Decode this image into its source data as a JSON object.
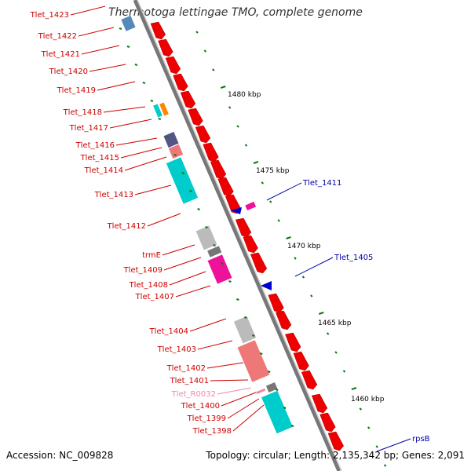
{
  "title": "Thermotoga lettingae TMO, complete genome",
  "footer": {
    "accession": "Accession: NC_009828",
    "summary": "Topology: circular; Length: 2,135,342 bp; Genes: 2,091"
  },
  "colors": {
    "cds_red": "#ee0000",
    "label_red": "#cc0000",
    "label_blue": "#0000aa",
    "rna_pink": "#ee88aa",
    "cyan": "#00cccc",
    "magenta": "#ee1199",
    "salmon": "#ee7777",
    "gray": "#bbbbbb",
    "navy": "#555588",
    "orange": "#ff8800",
    "tick_green": "#117711"
  },
  "scale_labels": [
    "1480 kbp",
    "1475 kbp",
    "1470 kbp",
    "1465 kbp",
    "1460 kbp"
  ],
  "gene_labels": [
    {
      "text": "Tlet_1423",
      "color": "red"
    },
    {
      "text": "Tlet_1422",
      "color": "red"
    },
    {
      "text": "Tlet_1421",
      "color": "red"
    },
    {
      "text": "Tlet_1420",
      "color": "red"
    },
    {
      "text": "Tlet_1419",
      "color": "red"
    },
    {
      "text": "Tlet_1418",
      "color": "red"
    },
    {
      "text": "Tlet_1417",
      "color": "red"
    },
    {
      "text": "Tlet_1416",
      "color": "red"
    },
    {
      "text": "Tlet_1415",
      "color": "red"
    },
    {
      "text": "Tlet_1414",
      "color": "red"
    },
    {
      "text": "Tlet_1413",
      "color": "red"
    },
    {
      "text": "Tlet_1412",
      "color": "red"
    },
    {
      "text": "trmE",
      "color": "red"
    },
    {
      "text": "Tlet_1409",
      "color": "red"
    },
    {
      "text": "Tlet_1408",
      "color": "red"
    },
    {
      "text": "Tlet_1407",
      "color": "red"
    },
    {
      "text": "Tlet_1404",
      "color": "red"
    },
    {
      "text": "Tlet_1403",
      "color": "red"
    },
    {
      "text": "Tlet_1402",
      "color": "red"
    },
    {
      "text": "Tlet_1401",
      "color": "red"
    },
    {
      "text": "Tlet_R0032",
      "color": "pink"
    },
    {
      "text": "Tlet_1400",
      "color": "red"
    },
    {
      "text": "Tlet_1399",
      "color": "red"
    },
    {
      "text": "Tlet_1398",
      "color": "red"
    },
    {
      "text": "Tlet_1411",
      "color": "blue"
    },
    {
      "text": "Tlet_1405",
      "color": "blue"
    },
    {
      "text": "rpsB",
      "color": "blue"
    }
  ]
}
